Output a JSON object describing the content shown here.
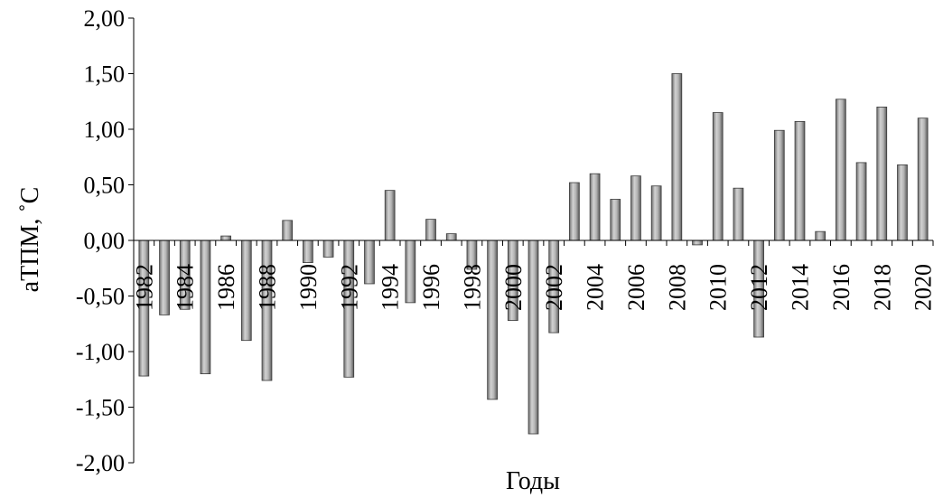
{
  "chart_data": {
    "type": "bar",
    "title": "",
    "xlabel": "Годы",
    "ylabel": "aТПМ, ˚С",
    "ylim": [
      -2,
      2
    ],
    "y_ticks": [
      "2,00",
      "1,50",
      "1,00",
      "0,50",
      "0,00",
      "-0,50",
      "-1,00",
      "-1,50",
      "-2,00"
    ],
    "grid": false,
    "legend": "none",
    "bar_color": "#9a9a9a",
    "categories": [
      "1982",
      "1983",
      "1984",
      "1985",
      "1986",
      "1987",
      "1988",
      "1989",
      "1990",
      "1991",
      "1992",
      "1993",
      "1994",
      "1995",
      "1996",
      "1997",
      "1998",
      "1999",
      "2000",
      "2001",
      "2002",
      "2003",
      "2004",
      "2005",
      "2006",
      "2007",
      "2008",
      "2009",
      "2010",
      "2011",
      "2012",
      "2013",
      "2014",
      "2015",
      "2016",
      "2017",
      "2018",
      "2019",
      "2020"
    ],
    "x_tick_labels": [
      "1982",
      "",
      "1984",
      "",
      "1986",
      "",
      "1988",
      "",
      "1990",
      "",
      "1992",
      "",
      "1994",
      "",
      "1996",
      "",
      "1998",
      "",
      "2000",
      "",
      "2002",
      "",
      "2004",
      "",
      "2006",
      "",
      "2008",
      "",
      "2010",
      "",
      "2012",
      "",
      "2014",
      "",
      "2016",
      "",
      "2018",
      "",
      "2020"
    ],
    "values": [
      -1.22,
      -0.67,
      -0.62,
      -1.2,
      0.04,
      -0.9,
      -1.26,
      0.18,
      -0.2,
      -0.15,
      -1.23,
      -0.39,
      0.45,
      -0.56,
      0.19,
      0.06,
      -0.26,
      -1.43,
      -0.72,
      -1.74,
      -0.83,
      0.52,
      0.6,
      0.37,
      0.58,
      0.49,
      1.5,
      -0.04,
      1.15,
      0.47,
      -0.87,
      0.99,
      1.07,
      0.08,
      1.27,
      0.7,
      1.2,
      0.68,
      1.1
    ]
  }
}
